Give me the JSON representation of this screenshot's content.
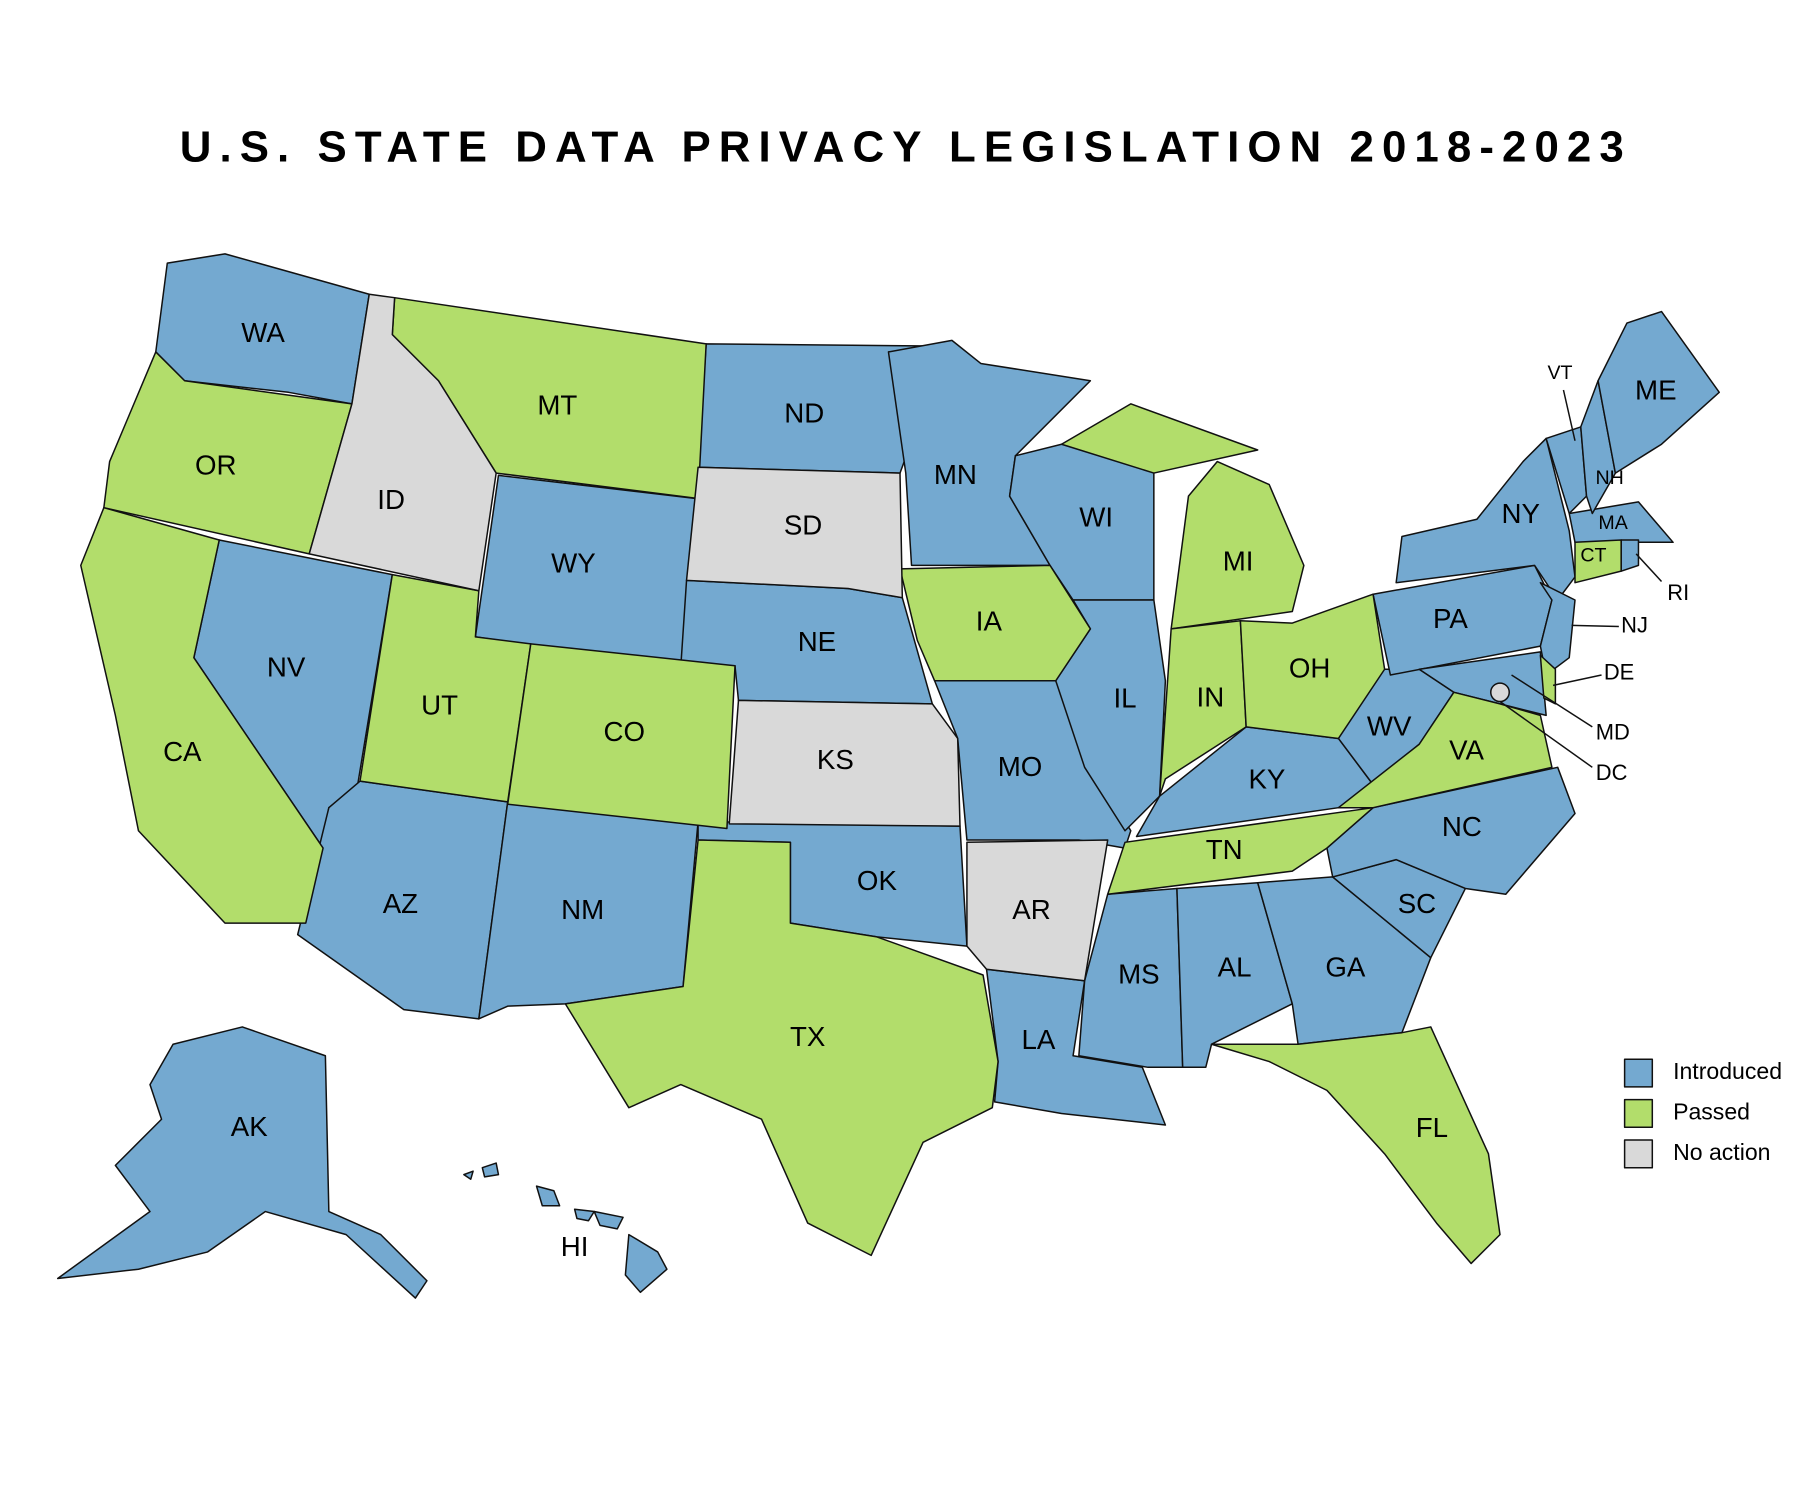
{
  "title": "U.S. STATE DATA PRIVACY LEGISLATION 2018-2023",
  "legend": {
    "items": [
      {
        "label": "Introduced",
        "color": "#74a9d0",
        "states": [
          "WA",
          "NV",
          "AZ",
          "NM",
          "WY",
          "ND",
          "NE",
          "OK",
          "MN",
          "MO",
          "LA",
          "WI",
          "IL",
          "KY",
          "MS",
          "AL",
          "GA",
          "SC",
          "NC",
          "WV",
          "PA",
          "NY",
          "NJ",
          "MD",
          "MA",
          "RI",
          "VT",
          "NH",
          "ME",
          "AK",
          "HI"
        ]
      },
      {
        "label": "Passed",
        "color": "#b2dd6b",
        "states": [
          "OR",
          "CA",
          "MT",
          "UT",
          "CO",
          "TX",
          "IA",
          "MI",
          "IN",
          "OH",
          "TN",
          "VA",
          "FL",
          "CT",
          "DE"
        ]
      },
      {
        "label": "No action",
        "color": "#d9d9d9",
        "states": [
          "ID",
          "SD",
          "KS",
          "AR",
          "DC"
        ]
      }
    ]
  }
}
